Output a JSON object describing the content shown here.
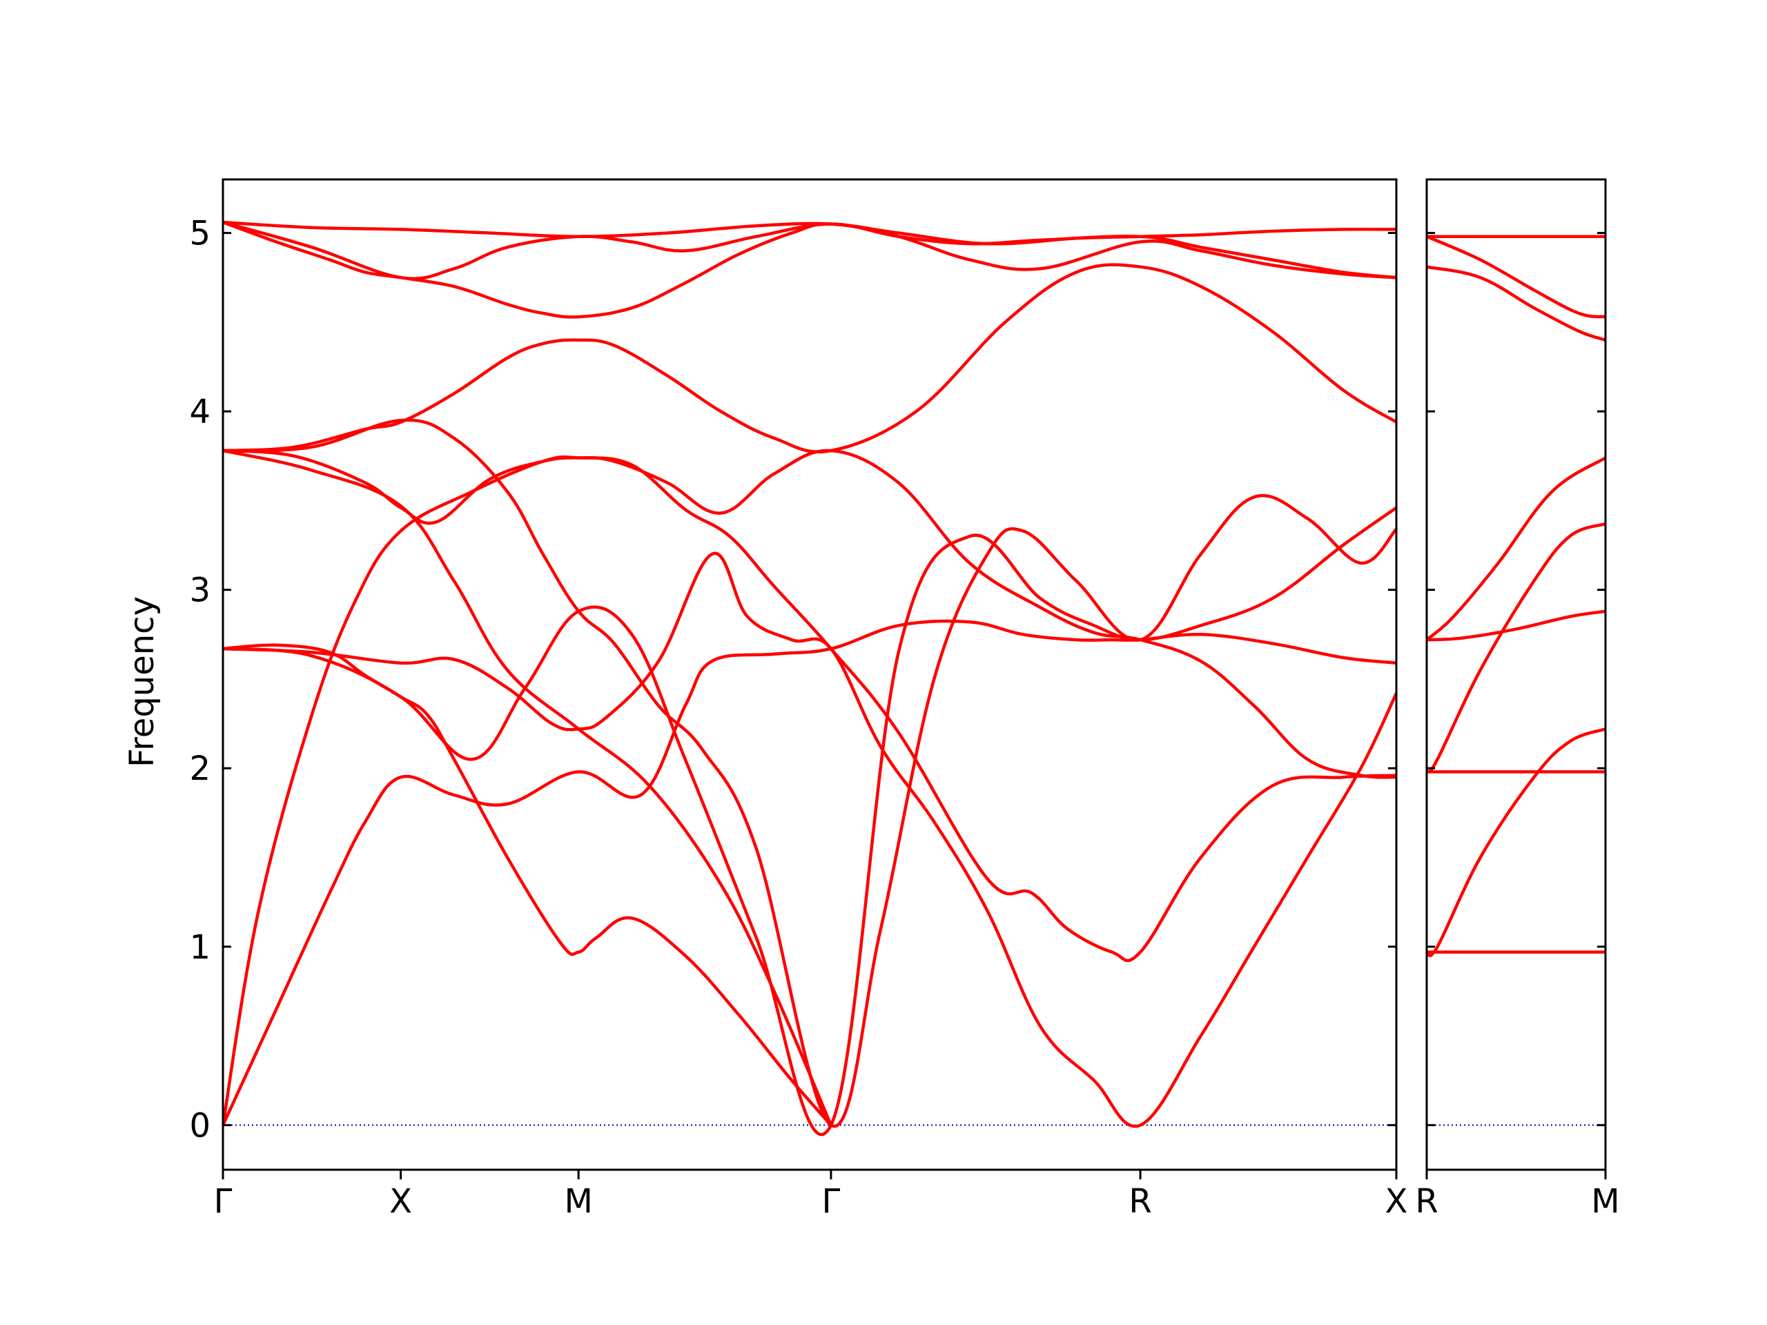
{
  "chart_data": {
    "type": "line",
    "title": "",
    "ylabel": "Frequency",
    "ylim": [
      -0.25,
      5.3
    ],
    "yticks": [
      0,
      1,
      2,
      3,
      4,
      5
    ],
    "grid": false,
    "legend": "none",
    "line_color": "#ff0000",
    "zero_line_color": "#0000aa",
    "panels": [
      {
        "name": "main-panel",
        "xlim": [
          0,
          6.6
        ],
        "xticks": [
          {
            "x": 0,
            "label": "Γ"
          },
          {
            "x": 1,
            "label": "X"
          },
          {
            "x": 2,
            "label": "M"
          },
          {
            "x": 3.42,
            "label": "Γ"
          },
          {
            "x": 5.16,
            "label": "R"
          },
          {
            "x": 6.6,
            "label": "X"
          }
        ],
        "series": [
          {
            "x": [
              0,
              0.3,
              0.6,
              0.8,
              1.0,
              1.3,
              1.6,
              2.0,
              2.35,
              2.6,
              2.75,
              3.1,
              3.42,
              3.8,
              4.2,
              4.5,
              4.8,
              5.0,
              5.16,
              5.5,
              5.9,
              6.3,
              6.6
            ],
            "y": [
              0,
              0.65,
              1.3,
              1.7,
              1.95,
              1.85,
              1.8,
              1.98,
              1.85,
              2.35,
              2.6,
              2.64,
              2.67,
              2.8,
              2.82,
              2.75,
              2.72,
              2.72,
              2.72,
              2.75,
              2.7,
              2.62,
              2.59
            ]
          },
          {
            "x": [
              0,
              0.2,
              0.5,
              0.75,
              1.0,
              1.4,
              1.8,
              2.0,
              2.3,
              2.6,
              2.85,
              3.1,
              3.42,
              3.8,
              4.3,
              4.55,
              4.75,
              5.0,
              5.16,
              5.5,
              5.9,
              6.3,
              6.6
            ],
            "y": [
              0,
              1.2,
              2.3,
              2.95,
              3.33,
              3.55,
              3.72,
              3.74,
              3.7,
              3.45,
              3.3,
              3.02,
              2.67,
              2.2,
              1.38,
              1.3,
              1.1,
              0.97,
              0.97,
              1.5,
              1.9,
              1.95,
              1.96
            ]
          },
          {
            "x": [
              0,
              0.5,
              1.0,
              1.3,
              1.6,
              1.85,
              2.0,
              2.15,
              2.45,
              2.75,
              2.95,
              3.2,
              3.42,
              3.7,
              4.0,
              4.3,
              4.6,
              4.9,
              5.16,
              5.5,
              5.8,
              6.1,
              6.4,
              6.6
            ],
            "y": [
              2.67,
              2.65,
              2.59,
              2.61,
              2.45,
              2.25,
              2.22,
              2.28,
              2.6,
              3.2,
              2.85,
              2.72,
              2.67,
              2.12,
              1.7,
              1.2,
              0.55,
              0.25,
              0,
              0.5,
              1.0,
              1.5,
              2.0,
              2.42
            ]
          },
          {
            "x": [
              0,
              0.3,
              0.6,
              0.8,
              1.0,
              1.15,
              1.3,
              1.6,
              1.9,
              2.0,
              2.1,
              2.3,
              2.6,
              2.9,
              3.2,
              3.42
            ],
            "y": [
              2.67,
              2.69,
              2.65,
              2.52,
              2.4,
              2.3,
              2.05,
              1.5,
              1.02,
              0.97,
              1.05,
              1.16,
              0.95,
              0.62,
              0.25,
              0
            ]
          },
          {
            "x": [
              0,
              0.5,
              1.0,
              1.3,
              1.6,
              2.0,
              2.4,
              2.8,
              3.1,
              3.42
            ],
            "y": [
              3.78,
              3.67,
              3.47,
              3.05,
              2.55,
              2.22,
              1.9,
              1.35,
              0.75,
              0
            ]
          },
          {
            "x": [
              0,
              0.5,
              1.0,
              1.3,
              1.6,
              1.8,
              2.0,
              2.2,
              2.45,
              2.7,
              3.0,
              3.42,
              3.7,
              4.0,
              4.3,
              4.5,
              4.8,
              5.16,
              5.5,
              5.8,
              6.1,
              6.4,
              6.6
            ],
            "y": [
              3.78,
              3.8,
              3.95,
              3.85,
              3.55,
              3.2,
              2.88,
              2.7,
              2.35,
              2.1,
              1.55,
              0,
              1.1,
              2.5,
              3.2,
              3.33,
              3.05,
              2.72,
              3.2,
              3.52,
              3.4,
              3.15,
              3.34
            ]
          },
          {
            "x": [
              0,
              0.5,
              1.0,
              1.4,
              1.7,
              2.0,
              2.3,
              2.6,
              3.0,
              3.42,
              3.8,
              4.2,
              4.6,
              4.9,
              5.16,
              5.5,
              5.9,
              6.3,
              6.6
            ],
            "y": [
              2.67,
              2.63,
              2.4,
              2.05,
              2.45,
              2.88,
              2.75,
              2.05,
              1.05,
              0,
              2.65,
              3.3,
              2.95,
              2.8,
              2.72,
              2.8,
              2.95,
              3.25,
              3.46
            ]
          },
          {
            "x": [
              0,
              0.4,
              0.8,
              1.0,
              1.2,
              1.5,
              1.8,
              2.0,
              2.2,
              2.5,
              2.8,
              3.1,
              3.42,
              3.8,
              4.2,
              4.6,
              4.9,
              5.16,
              5.5,
              5.8,
              6.1,
              6.4,
              6.6
            ],
            "y": [
              3.78,
              3.75,
              3.6,
              3.46,
              3.38,
              3.62,
              3.72,
              3.74,
              3.72,
              3.6,
              3.43,
              3.65,
              3.78,
              3.6,
              3.15,
              2.9,
              2.76,
              2.72,
              2.6,
              2.35,
              2.05,
              1.96,
              1.95
            ]
          },
          {
            "x": [
              0,
              0.4,
              0.8,
              1.0,
              1.3,
              1.6,
              1.8,
              2.0,
              2.2,
              2.5,
              2.8,
              3.1,
              3.42,
              3.9,
              4.4,
              4.8,
              5.16,
              5.5,
              5.9,
              6.3,
              6.6
            ],
            "y": [
              3.78,
              3.8,
              3.9,
              3.94,
              4.1,
              4.3,
              4.38,
              4.4,
              4.37,
              4.2,
              4.0,
              3.85,
              3.78,
              4.0,
              4.5,
              4.78,
              4.81,
              4.7,
              4.45,
              4.12,
              3.94
            ]
          },
          {
            "x": [
              0,
              0.3,
              0.6,
              0.8,
              1.0,
              1.3,
              1.6,
              1.8,
              2.0,
              2.3,
              2.6,
              2.9,
              3.2,
              3.42,
              3.8,
              4.2,
              4.6,
              5.16,
              5.5,
              5.9,
              6.3,
              6.6
            ],
            "y": [
              5.06,
              4.95,
              4.85,
              4.78,
              4.75,
              4.7,
              4.6,
              4.55,
              4.53,
              4.58,
              4.72,
              4.88,
              5.0,
              5.05,
              4.98,
              4.85,
              4.8,
              4.95,
              4.9,
              4.82,
              4.77,
              4.75
            ]
          },
          {
            "x": [
              0,
              0.5,
              1.0,
              1.3,
              1.6,
              2.0,
              2.3,
              2.6,
              3.0,
              3.42,
              3.8,
              4.2,
              4.6,
              5.16,
              5.5,
              5.9,
              6.3,
              6.6
            ],
            "y": [
              5.06,
              4.92,
              4.75,
              4.8,
              4.92,
              4.98,
              4.95,
              4.9,
              4.98,
              5.05,
              4.98,
              4.94,
              4.96,
              4.98,
              4.92,
              4.85,
              4.78,
              4.75
            ]
          },
          {
            "x": [
              0,
              0.5,
              1.0,
              1.5,
              2.0,
              2.5,
              3.0,
              3.42,
              3.8,
              4.3,
              4.8,
              5.16,
              5.5,
              5.9,
              6.3,
              6.6
            ],
            "y": [
              5.06,
              5.03,
              5.02,
              5.0,
              4.98,
              5.0,
              5.04,
              5.05,
              5.0,
              4.94,
              4.97,
              4.98,
              4.99,
              5.01,
              5.02,
              5.02
            ]
          }
        ]
      },
      {
        "name": "right-panel",
        "xlim": [
          0,
          1
        ],
        "xticks": [
          {
            "x": 0,
            "label": "R"
          },
          {
            "x": 1,
            "label": "M"
          }
        ],
        "series": [
          {
            "x": [
              0,
              1
            ],
            "y": [
              0.97,
              0.97
            ]
          },
          {
            "x": [
              0,
              0.06,
              0.3,
              0.6,
              0.8,
              1.0
            ],
            "y": [
              0.97,
              1.0,
              1.5,
              1.95,
              2.15,
              2.22
            ]
          },
          {
            "x": [
              0,
              1
            ],
            "y": [
              1.98,
              1.98
            ]
          },
          {
            "x": [
              0,
              0.06,
              0.3,
              0.6,
              0.8,
              1.0
            ],
            "y": [
              1.98,
              2.05,
              2.55,
              3.05,
              3.3,
              3.37
            ]
          },
          {
            "x": [
              0,
              0.2,
              0.5,
              0.8,
              1.0
            ],
            "y": [
              2.72,
              2.73,
              2.78,
              2.85,
              2.88
            ]
          },
          {
            "x": [
              0,
              0.15,
              0.4,
              0.7,
              1.0
            ],
            "y": [
              2.72,
              2.85,
              3.15,
              3.55,
              3.74
            ]
          },
          {
            "x": [
              0,
              0.3,
              0.6,
              0.85,
              1.0
            ],
            "y": [
              4.81,
              4.75,
              4.58,
              4.45,
              4.4
            ]
          },
          {
            "x": [
              0,
              0.3,
              0.6,
              0.85,
              1.0
            ],
            "y": [
              4.98,
              4.85,
              4.68,
              4.55,
              4.53
            ]
          },
          {
            "x": [
              0,
              1
            ],
            "y": [
              4.98,
              4.98
            ]
          }
        ]
      }
    ]
  }
}
